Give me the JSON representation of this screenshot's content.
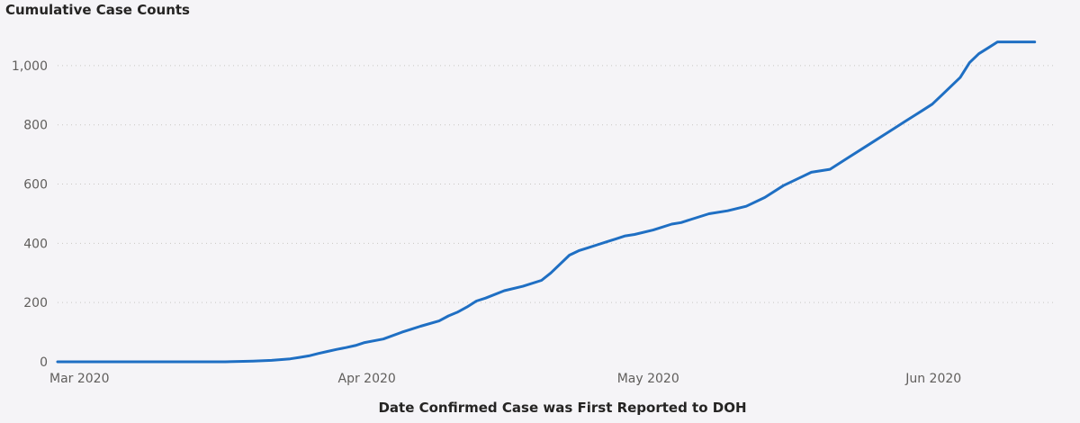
{
  "chart_data": {
    "type": "line",
    "title": "Cumulative Case Counts",
    "xlabel": "Date Confirmed Case was First Reported to DOH",
    "ylabel": "",
    "x_type": "date",
    "xlim": [
      "2020-03-01",
      "2020-06-15"
    ],
    "ylim": [
      0,
      1100
    ],
    "yticks": [
      0,
      200,
      400,
      600,
      800,
      1000
    ],
    "ytick_labels": [
      "0",
      "200",
      "400",
      "600",
      "800",
      "1,000"
    ],
    "xticks": [
      "2020-03-01",
      "2020-04-01",
      "2020-05-01",
      "2020-06-01"
    ],
    "xtick_labels": [
      "Mar 2020",
      "Apr 2020",
      "May 2020",
      "Jun 2020"
    ],
    "grid": "horizontal dotted",
    "legend": "none",
    "colors": {
      "line": "#1f6fc3",
      "grid": "#c8c6c4",
      "tick_text": "#605e5c",
      "title_text": "#252423",
      "background": "#f5f4f7"
    },
    "series": [
      {
        "x": [
          "2020-03-01",
          "2020-03-10",
          "2020-03-19",
          "2020-03-22",
          "2020-03-24",
          "2020-03-26",
          "2020-03-27",
          "2020-03-28",
          "2020-03-29",
          "2020-03-30",
          "2020-03-31",
          "2020-04-01",
          "2020-04-02",
          "2020-04-03",
          "2020-04-05",
          "2020-04-07",
          "2020-04-08",
          "2020-04-09",
          "2020-04-11",
          "2020-04-12",
          "2020-04-13",
          "2020-04-14",
          "2020-04-15",
          "2020-04-16",
          "2020-04-18",
          "2020-04-20",
          "2020-04-22",
          "2020-04-23",
          "2020-04-25",
          "2020-04-26",
          "2020-04-27",
          "2020-04-28",
          "2020-04-29",
          "2020-04-30",
          "2020-05-01",
          "2020-05-02",
          "2020-05-04",
          "2020-05-06",
          "2020-05-07",
          "2020-05-08",
          "2020-05-10",
          "2020-05-12",
          "2020-05-14",
          "2020-05-16",
          "2020-05-18",
          "2020-05-20",
          "2020-05-21",
          "2020-05-23",
          "2020-05-25",
          "2020-05-27",
          "2020-05-28",
          "2020-05-29",
          "2020-05-30",
          "2020-05-31",
          "2020-06-01",
          "2020-06-02",
          "2020-06-03",
          "2020-06-04",
          "2020-06-05",
          "2020-06-06",
          "2020-06-07",
          "2020-06-08",
          "2020-06-09",
          "2020-06-10",
          "2020-06-11",
          "2020-06-12",
          "2020-06-13",
          "2020-06-14"
        ],
        "y": [
          0,
          0,
          0,
          2,
          5,
          10,
          15,
          20,
          28,
          35,
          42,
          48,
          55,
          65,
          77,
          100,
          110,
          120,
          138,
          155,
          168,
          185,
          205,
          215,
          240,
          255,
          275,
          300,
          360,
          375,
          385,
          395,
          405,
          415,
          425,
          430,
          445,
          465,
          470,
          480,
          500,
          510,
          525,
          555,
          595,
          625,
          640,
          650,
          690,
          730,
          750,
          770,
          790,
          810,
          830,
          850,
          870,
          900,
          930,
          960,
          1010,
          1040,
          1060,
          1080,
          1080,
          1080,
          1080,
          1080
        ]
      }
    ]
  }
}
